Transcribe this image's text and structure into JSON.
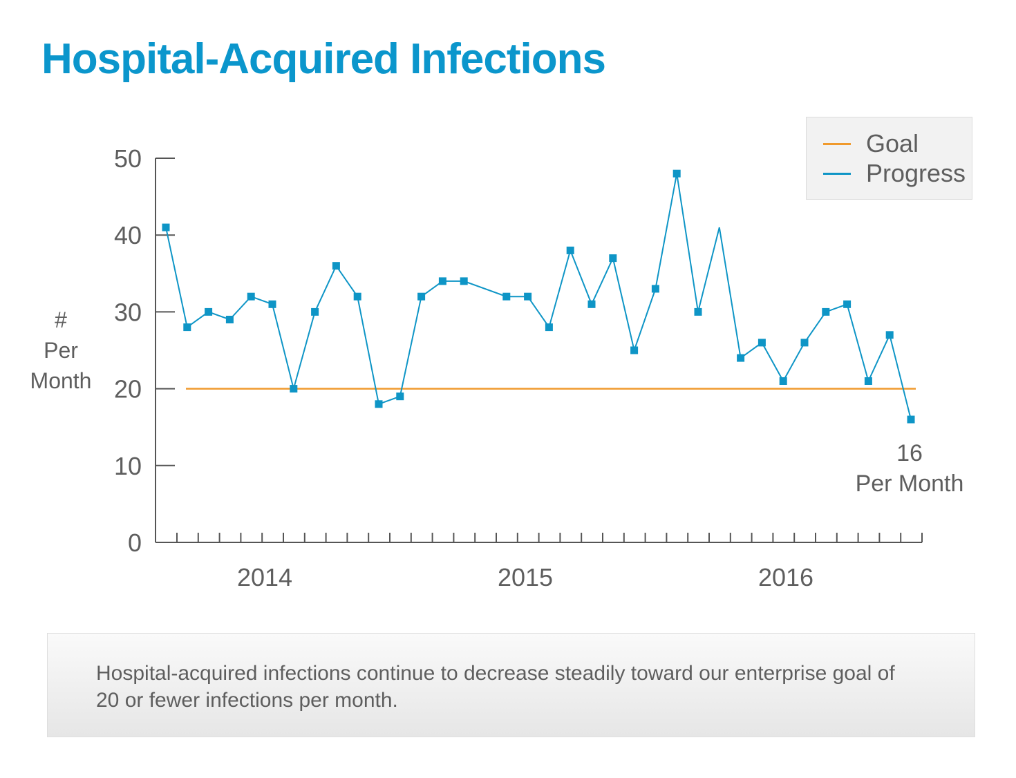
{
  "title": "Hospital-Acquired Infections",
  "legend": [
    {
      "label": "Goal",
      "color": "#f09a2d"
    },
    {
      "label": "Progress",
      "color": "#0e95c6"
    }
  ],
  "caption": "Hospital-acquired infections continue to decrease steadily toward our enterprise goal of 20 or fewer infections per month.",
  "chart_data": {
    "type": "line",
    "title": "Hospital-Acquired Infections",
    "ylabel": [
      "#",
      "Per",
      "Month"
    ],
    "xlabel": "",
    "ylim": [
      0,
      50
    ],
    "yticks": [
      0,
      10,
      20,
      30,
      40,
      50
    ],
    "xticklabels": [
      "2014",
      "2015",
      "2016"
    ],
    "legend_position": "top-right",
    "grid": false,
    "series": [
      {
        "name": "Progress",
        "color": "#0e95c6",
        "marker": "square",
        "values": [
          41,
          28,
          30,
          29,
          32,
          31,
          20,
          30,
          36,
          32,
          18,
          19,
          32,
          34,
          34,
          null,
          32,
          32,
          28,
          38,
          31,
          37,
          25,
          33,
          48,
          30,
          41,
          24,
          26,
          21,
          26,
          30,
          31,
          21,
          27,
          16
        ],
        "markers": [
          true,
          true,
          true,
          true,
          true,
          true,
          true,
          true,
          true,
          true,
          true,
          true,
          true,
          true,
          true,
          false,
          true,
          true,
          true,
          true,
          true,
          true,
          true,
          true,
          true,
          true,
          false,
          true,
          true,
          true,
          true,
          true,
          true,
          true,
          true,
          true
        ]
      },
      {
        "name": "Goal",
        "color": "#f09a2d",
        "values": [
          20,
          20
        ]
      }
    ],
    "annotation": {
      "value": "16",
      "text": "Per Month"
    }
  }
}
